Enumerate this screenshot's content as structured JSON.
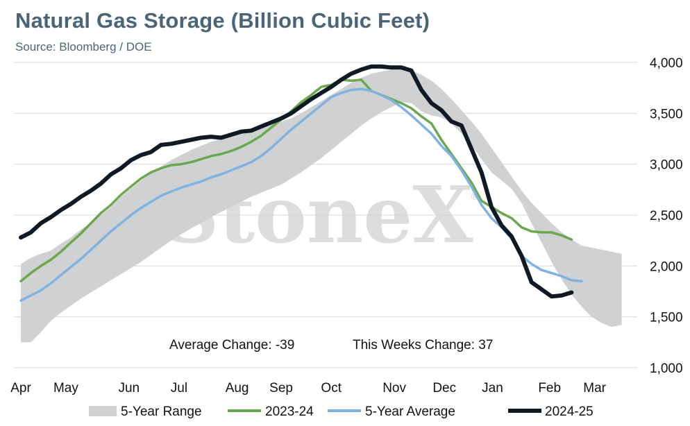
{
  "title": "Natural Gas Storage (Billion Cubic Feet)",
  "subtitle": "Source: Bloomberg / DOE",
  "watermark": "StoneX",
  "watermark_mark": "®",
  "colors": {
    "range": "#cfd1d2",
    "y2023": "#6aa84f",
    "avg": "#7fb2df",
    "y2024": "#0f1a24",
    "title": "#4a6478"
  },
  "chart_data": {
    "type": "line",
    "weeks": 52,
    "ylim": [
      1000,
      4000
    ],
    "yticks": [
      1000,
      1500,
      2000,
      2500,
      3000,
      3500,
      4000
    ],
    "ytick_labels": [
      "1,000",
      "1,500",
      "2,000",
      "2,500",
      "3,000",
      "3,500",
      "4,000"
    ],
    "month_labels": [
      {
        "label": "Apr",
        "week": 0
      },
      {
        "label": "May",
        "week": 4.5
      },
      {
        "label": "Jun",
        "week": 10.8
      },
      {
        "label": "Jul",
        "week": 15.8
      },
      {
        "label": "Aug",
        "week": 21.6
      },
      {
        "label": "Sep",
        "week": 26
      },
      {
        "label": "Oct",
        "week": 31
      },
      {
        "label": "Nov",
        "week": 37.3
      },
      {
        "label": "Dec",
        "week": 42.3
      },
      {
        "label": "Jan",
        "week": 47.1
      },
      {
        "label": "Feb",
        "week": 52.8
      },
      {
        "label": "Mar",
        "week": 57.3
      }
    ],
    "x_max_week": 61,
    "series": [
      {
        "name": "5-Year Range",
        "kind": "band",
        "upper": [
          2020,
          2080,
          2120,
          2150,
          2220,
          2280,
          2360,
          2420,
          2500,
          2580,
          2680,
          2760,
          2840,
          2910,
          2980,
          3040,
          3090,
          3140,
          3180,
          3220,
          3250,
          3290,
          3320,
          3340,
          3360,
          3390,
          3420,
          3450,
          3500,
          3560,
          3620,
          3680,
          3740,
          3800,
          3850,
          3890,
          3910,
          3930,
          3930,
          3920,
          3880,
          3820,
          3740,
          3640,
          3530,
          3420,
          3300,
          3160,
          3020,
          2880,
          2740,
          2620,
          2520,
          2420,
          2330,
          2260,
          2200,
          2180,
          2160,
          2140,
          2120
        ],
        "lower": [
          1250,
          1250,
          1350,
          1460,
          1540,
          1610,
          1680,
          1740,
          1800,
          1860,
          1920,
          1980,
          2040,
          2110,
          2180,
          2250,
          2310,
          2370,
          2420,
          2480,
          2530,
          2580,
          2630,
          2680,
          2720,
          2760,
          2800,
          2860,
          2920,
          2990,
          3060,
          3140,
          3220,
          3300,
          3380,
          3450,
          3510,
          3560,
          3610,
          3600,
          3520,
          3480,
          3460,
          3400,
          3300,
          3180,
          3050,
          2920,
          2840,
          2760,
          2620,
          2420,
          2230,
          2040,
          1870,
          1720,
          1600,
          1500,
          1440,
          1400,
          1420
        ]
      },
      {
        "name": "2023-24",
        "kind": "line",
        "values": [
          1850,
          1930,
          2000,
          2060,
          2140,
          2230,
          2320,
          2420,
          2520,
          2600,
          2700,
          2780,
          2860,
          2920,
          2960,
          2990,
          3000,
          3020,
          3050,
          3080,
          3100,
          3130,
          3170,
          3220,
          3280,
          3360,
          3440,
          3520,
          3610,
          3680,
          3760,
          3780,
          3830,
          3820,
          3830,
          3720,
          3680,
          3640,
          3600,
          3550,
          3470,
          3400,
          3240,
          3100,
          2960,
          2820,
          2640,
          2580,
          2520,
          2470,
          2380,
          2340,
          2330,
          2330,
          2300,
          2260
        ]
      },
      {
        "name": "5-Year Average",
        "kind": "line",
        "values": [
          1660,
          1710,
          1760,
          1830,
          1910,
          1990,
          2070,
          2160,
          2250,
          2340,
          2420,
          2500,
          2570,
          2630,
          2690,
          2730,
          2770,
          2800,
          2830,
          2870,
          2900,
          2940,
          2980,
          3020,
          3080,
          3160,
          3250,
          3340,
          3420,
          3500,
          3580,
          3660,
          3700,
          3730,
          3740,
          3720,
          3680,
          3630,
          3560,
          3480,
          3390,
          3300,
          3180,
          3080,
          2940,
          2780,
          2600,
          2470,
          2380,
          2270,
          2100,
          2020,
          1960,
          1930,
          1900,
          1860,
          1850
        ]
      },
      {
        "name": "2024-25",
        "kind": "line",
        "values": [
          2280,
          2330,
          2420,
          2480,
          2550,
          2610,
          2680,
          2740,
          2810,
          2900,
          2960,
          3040,
          3090,
          3120,
          3190,
          3200,
          3220,
          3240,
          3260,
          3270,
          3260,
          3290,
          3320,
          3330,
          3370,
          3410,
          3450,
          3500,
          3570,
          3640,
          3700,
          3760,
          3830,
          3890,
          3930,
          3960,
          3960,
          3950,
          3950,
          3920,
          3730,
          3600,
          3530,
          3420,
          3380,
          3150,
          2920,
          2580,
          2400,
          2290,
          2100,
          1840,
          1770,
          1700,
          1710,
          1740
        ]
      }
    ],
    "annotations": [
      {
        "text": "Average Change: -39"
      },
      {
        "text": "This Weeks Change: 37"
      }
    ],
    "grid": true,
    "legend_position": "bottom",
    "legend": [
      "5-Year Range",
      "2023-24",
      "5-Year Average",
      "2024-25"
    ]
  }
}
